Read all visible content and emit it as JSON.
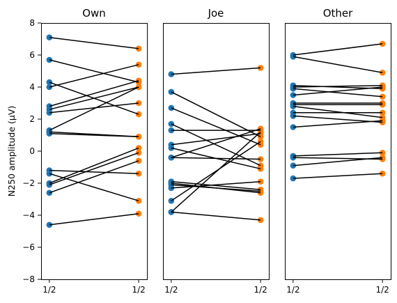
{
  "chart_data": {
    "type": "scatter",
    "ylabel": "N250 amplitude (μV)",
    "ylim": [
      -8,
      8
    ],
    "yticks": [
      -8,
      -6,
      -4,
      -2,
      0,
      2,
      4,
      6,
      8
    ],
    "xtick_labels": [
      "1/2",
      "1/2"
    ],
    "colors": {
      "condition_1": "#1f77b4",
      "condition_2": "#ff7f0e",
      "line": "#000000"
    },
    "panels": [
      {
        "title": "Own",
        "pairs": [
          [
            7.1,
            6.4
          ],
          [
            5.7,
            4.3
          ],
          [
            4.3,
            2.3
          ],
          [
            4.0,
            5.4
          ],
          [
            2.8,
            4.4
          ],
          [
            2.6,
            4.0
          ],
          [
            2.4,
            3.0
          ],
          [
            1.3,
            4.0
          ],
          [
            1.2,
            0.9
          ],
          [
            1.1,
            0.9
          ],
          [
            -1.2,
            -1.4
          ],
          [
            -1.4,
            -3.1
          ],
          [
            -2.0,
            0.2
          ],
          [
            -2.1,
            -0.1
          ],
          [
            -2.6,
            -0.6
          ],
          [
            -4.6,
            -3.9
          ]
        ]
      },
      {
        "title": "Joe",
        "pairs": [
          [
            4.8,
            5.2
          ],
          [
            3.7,
            0.9
          ],
          [
            2.7,
            0.4
          ],
          [
            1.7,
            -0.9
          ],
          [
            1.3,
            1.3
          ],
          [
            0.4,
            1.1
          ],
          [
            0.2,
            -1.1
          ],
          [
            -0.4,
            1.4
          ],
          [
            -0.4,
            -0.5
          ],
          [
            -1.9,
            -2.4
          ],
          [
            -2.0,
            -2.6
          ],
          [
            -2.1,
            -2.5
          ],
          [
            -2.3,
            -1.9
          ],
          [
            -3.1,
            0.6
          ],
          [
            -3.8,
            1.2
          ],
          [
            -3.8,
            -4.3
          ]
        ]
      },
      {
        "title": "Other",
        "pairs": [
          [
            6.0,
            6.7
          ],
          [
            5.9,
            4.9
          ],
          [
            4.1,
            3.9
          ],
          [
            4.0,
            4.1
          ],
          [
            3.9,
            3.4
          ],
          [
            3.5,
            4.0
          ],
          [
            3.0,
            3.0
          ],
          [
            2.9,
            2.9
          ],
          [
            2.8,
            2.1
          ],
          [
            2.4,
            2.4
          ],
          [
            2.2,
            1.8
          ],
          [
            1.5,
            1.9
          ],
          [
            -0.3,
            -0.1
          ],
          [
            -0.4,
            -0.5
          ],
          [
            -0.9,
            -0.4
          ],
          [
            -1.7,
            -1.4
          ]
        ]
      }
    ]
  }
}
